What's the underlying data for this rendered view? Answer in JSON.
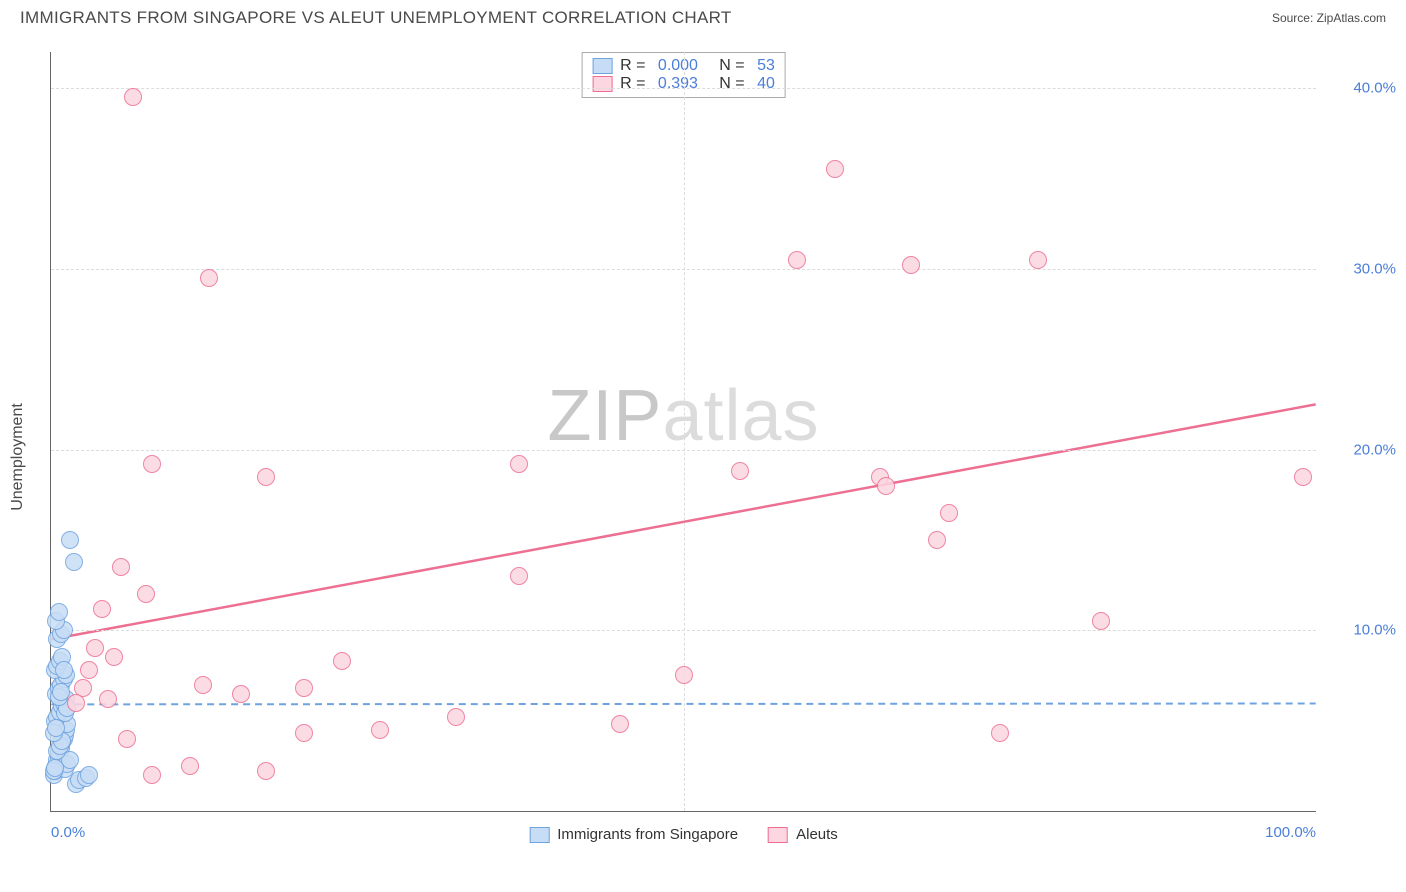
{
  "title": "IMMIGRANTS FROM SINGAPORE VS ALEUT UNEMPLOYMENT CORRELATION CHART",
  "source": "Source: ZipAtlas.com",
  "watermark_a": "ZIP",
  "watermark_b": "atlas",
  "chart": {
    "type": "scatter",
    "y_axis_title": "Unemployment",
    "xlim": [
      0,
      100
    ],
    "ylim": [
      0,
      42
    ],
    "x_ticks": [
      {
        "v": 0,
        "label": "0.0%"
      },
      {
        "v": 100,
        "label": "100.0%"
      }
    ],
    "y_ticks": [
      {
        "v": 10,
        "label": "10.0%"
      },
      {
        "v": 20,
        "label": "20.0%"
      },
      {
        "v": 30,
        "label": "30.0%"
      },
      {
        "v": 40,
        "label": "40.0%"
      }
    ],
    "x_gridlines": [
      50
    ],
    "marker_radius": 9,
    "series": [
      {
        "name": "Immigrants from Singapore",
        "stroke": "#6fa3e0",
        "fill": "#c7ddf5",
        "R": "0.000",
        "N": "53",
        "trend": {
          "y_at_x0": 5.9,
          "y_at_xmax": 5.95,
          "dashed": true,
          "width": 2
        },
        "points": [
          [
            0.2,
            2.0
          ],
          [
            0.3,
            2.2
          ],
          [
            0.4,
            2.5
          ],
          [
            0.5,
            2.8
          ],
          [
            0.6,
            3.0
          ],
          [
            0.7,
            3.2
          ],
          [
            0.8,
            3.5
          ],
          [
            0.9,
            3.8
          ],
          [
            1.0,
            4.0
          ],
          [
            1.1,
            4.2
          ],
          [
            1.2,
            4.5
          ],
          [
            1.3,
            4.8
          ],
          [
            0.3,
            5.0
          ],
          [
            0.5,
            5.2
          ],
          [
            0.7,
            5.5
          ],
          [
            0.9,
            5.8
          ],
          [
            1.0,
            6.0
          ],
          [
            1.2,
            6.2
          ],
          [
            0.4,
            6.5
          ],
          [
            0.6,
            6.8
          ],
          [
            0.8,
            7.0
          ],
          [
            1.0,
            7.3
          ],
          [
            1.2,
            7.5
          ],
          [
            0.3,
            7.8
          ],
          [
            0.5,
            8.0
          ],
          [
            0.7,
            8.3
          ],
          [
            0.9,
            8.5
          ],
          [
            1.1,
            2.3
          ],
          [
            1.3,
            2.6
          ],
          [
            1.5,
            2.8
          ],
          [
            0.2,
            2.2
          ],
          [
            0.3,
            2.4
          ],
          [
            2.0,
            1.5
          ],
          [
            2.2,
            1.7
          ],
          [
            2.8,
            1.8
          ],
          [
            3.0,
            2.0
          ],
          [
            0.5,
            9.5
          ],
          [
            0.8,
            9.8
          ],
          [
            1.0,
            10.0
          ],
          [
            0.4,
            10.5
          ],
          [
            0.6,
            11.0
          ],
          [
            1.5,
            15.0
          ],
          [
            1.8,
            13.8
          ],
          [
            0.5,
            3.3
          ],
          [
            0.7,
            3.6
          ],
          [
            0.9,
            3.9
          ],
          [
            1.1,
            5.4
          ],
          [
            1.3,
            5.7
          ],
          [
            0.2,
            4.3
          ],
          [
            0.4,
            4.6
          ],
          [
            0.6,
            6.3
          ],
          [
            0.8,
            6.6
          ],
          [
            1.0,
            7.8
          ]
        ]
      },
      {
        "name": "Aleuts",
        "stroke": "#ed6f91",
        "fill": "#fcd6e0",
        "R": "0.393",
        "N": "40",
        "trend": {
          "y_at_x0": 9.5,
          "y_at_xmax": 22.5,
          "dashed": false,
          "width": 2.5
        },
        "points": [
          [
            8.0,
            19.2
          ],
          [
            6.5,
            39.5
          ],
          [
            12.5,
            29.5
          ],
          [
            17.0,
            18.5
          ],
          [
            37.0,
            19.2
          ],
          [
            59.0,
            30.5
          ],
          [
            68.0,
            30.2
          ],
          [
            78.0,
            30.5
          ],
          [
            62.0,
            35.5
          ],
          [
            5.5,
            13.5
          ],
          [
            7.5,
            12.0
          ],
          [
            4.0,
            11.2
          ],
          [
            5.0,
            8.5
          ],
          [
            12.0,
            7.0
          ],
          [
            15.0,
            6.5
          ],
          [
            3.0,
            7.8
          ],
          [
            2.5,
            6.8
          ],
          [
            4.5,
            6.2
          ],
          [
            8.0,
            2.0
          ],
          [
            11.0,
            2.5
          ],
          [
            17.0,
            2.2
          ],
          [
            20.0,
            4.3
          ],
          [
            26.0,
            4.5
          ],
          [
            23.0,
            8.3
          ],
          [
            32.0,
            5.2
          ],
          [
            45.0,
            4.8
          ],
          [
            37.0,
            13.0
          ],
          [
            50.0,
            7.5
          ],
          [
            54.5,
            18.8
          ],
          [
            65.5,
            18.5
          ],
          [
            75.0,
            4.3
          ],
          [
            70.0,
            15.0
          ],
          [
            66.0,
            18.0
          ],
          [
            71.0,
            16.5
          ],
          [
            83.0,
            10.5
          ],
          [
            99.0,
            18.5
          ],
          [
            2.0,
            6.0
          ],
          [
            3.5,
            9.0
          ],
          [
            6.0,
            4.0
          ],
          [
            20.0,
            6.8
          ]
        ]
      }
    ]
  },
  "colors": {
    "title_text": "#4a4a4a",
    "axis_label": "#4a7ed8",
    "grid": "#dcdcdc",
    "axis_line": "#666666",
    "background": "#ffffff"
  }
}
